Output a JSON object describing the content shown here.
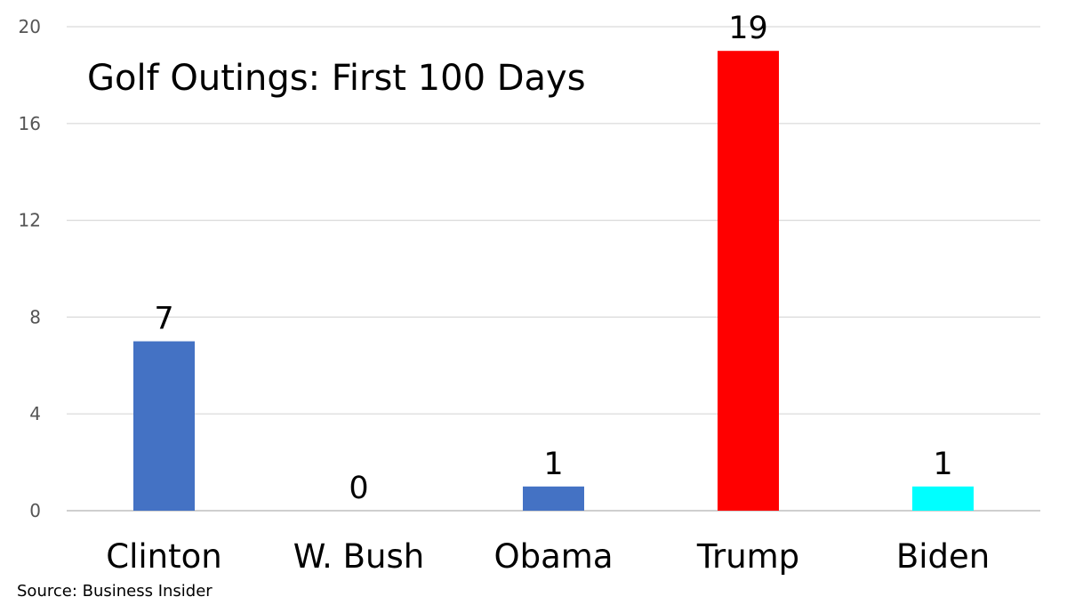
{
  "chart_data": {
    "type": "bar",
    "title": "Golf Outings: First 100 Days",
    "categories": [
      "Clinton",
      "W. Bush",
      "Obama",
      "Trump",
      "Biden"
    ],
    "values": [
      7,
      0,
      1,
      19,
      1
    ],
    "data_labels": [
      "7",
      "0",
      "1",
      "19",
      "1"
    ],
    "bar_colors": [
      "#4472c4",
      "#4472c4",
      "#4472c4",
      "#ff0000",
      "#00ffff"
    ],
    "ylim": [
      0,
      20
    ],
    "yticks": [
      0,
      4,
      8,
      12,
      16,
      20
    ],
    "ytick_labels": [
      "0",
      "4",
      "8",
      "12",
      "16",
      "20"
    ],
    "grid": true,
    "legend": "none",
    "xlabel": "",
    "ylabel": ""
  },
  "source": "Source: Business Insider"
}
